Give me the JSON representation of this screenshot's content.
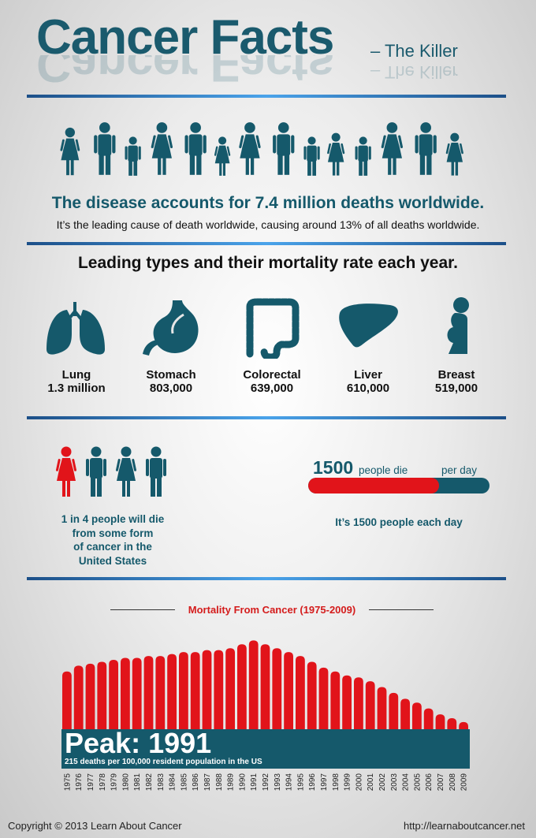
{
  "header": {
    "title": "Cancer Facts",
    "subtitle": "– The Killer"
  },
  "colors": {
    "teal": "#15596b",
    "red": "#e1141a",
    "divider": "#3a8ad8"
  },
  "intro": {
    "headline": "The disease accounts for 7.4 million deaths worldwide.",
    "subline": "It’s the leading cause of death worldwide, causing around 13% of all deaths worldwide."
  },
  "types": {
    "title": "Leading types and their mortality rate each year.",
    "items": [
      {
        "name": "Lung",
        "value": "1.3 million",
        "icon": "lungs-icon"
      },
      {
        "name": "Stomach",
        "value": "803,000",
        "icon": "stomach-icon"
      },
      {
        "name": "Colorectal",
        "value": "639,000",
        "icon": "colon-icon"
      },
      {
        "name": "Liver",
        "value": "610,000",
        "icon": "liver-icon"
      },
      {
        "name": "Breast",
        "value": "519,000",
        "icon": "breast-icon"
      }
    ]
  },
  "us_stat": {
    "text_l1": "1 in 4 people will die",
    "text_l2": "from some form",
    "text_l3": "of cancer in the",
    "text_l4": "United States"
  },
  "per_day": {
    "number": "1500",
    "label": "people die",
    "label2": "per day",
    "subtext": "It’s 1500 people each day",
    "fill_fraction": 0.72
  },
  "chart_data": {
    "type": "bar",
    "title": "Mortality From Cancer (1975-2009)",
    "categories": [
      "1975",
      "1976",
      "1977",
      "1978",
      "1979",
      "1980",
      "1981",
      "1982",
      "1983",
      "1984",
      "1985",
      "1986",
      "1987",
      "1988",
      "1989",
      "1990",
      "1991",
      "1992",
      "1993",
      "1994",
      "1995",
      "1996",
      "1997",
      "1998",
      "1999",
      "2000",
      "2001",
      "2002",
      "2003",
      "2004",
      "2005",
      "2006",
      "2007",
      "2008",
      "2009"
    ],
    "values": [
      199,
      202,
      203,
      204,
      205,
      206,
      206,
      207,
      207,
      208,
      209,
      209,
      210,
      210,
      211,
      213,
      215,
      213,
      211,
      209,
      207,
      204,
      201,
      199,
      197,
      196,
      194,
      191,
      188,
      185,
      183,
      180,
      177,
      175,
      173
    ],
    "ylim": [
      160,
      220
    ],
    "peak": {
      "label": "Peak: 1991",
      "note": "215 deaths per 100,000 resident population in the US"
    }
  },
  "footer": {
    "copyright": "Copyright © 2013 Learn About Cancer",
    "url": "http://learnaboutcancer.net"
  }
}
